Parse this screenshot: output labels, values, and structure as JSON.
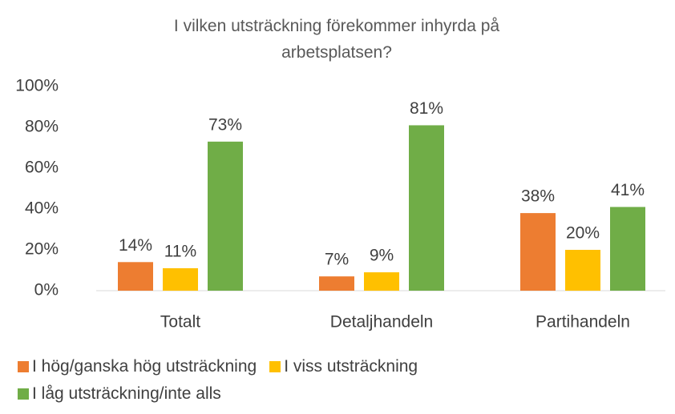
{
  "chart_data": {
    "type": "bar",
    "title": "I vilken utsträckning förekommer inhyrda på arbetsplatsen?",
    "categories": [
      "Totalt",
      "Detaljhandeln",
      "Partihandeln"
    ],
    "series": [
      {
        "name": "I hög/ganska hög utsträckning",
        "color": "#ED7D31",
        "values": [
          14,
          7,
          38
        ],
        "value_labels": [
          "14%",
          "7%",
          "38%"
        ]
      },
      {
        "name": "I viss utsträckning",
        "color": "#FFC000",
        "values": [
          11,
          9,
          20
        ],
        "value_labels": [
          "11%",
          "9%",
          "20%"
        ]
      },
      {
        "name": "I låg utsträckning/inte alls",
        "color": "#70AD47",
        "values": [
          73,
          81,
          41
        ],
        "value_labels": [
          "73%",
          "81%",
          "41%"
        ]
      }
    ],
    "ylim": [
      0,
      100
    ],
    "yticks": [
      {
        "value": 0,
        "label": "0%"
      },
      {
        "value": 20,
        "label": "20%"
      },
      {
        "value": 40,
        "label": "40%"
      },
      {
        "value": 60,
        "label": "60%"
      },
      {
        "value": 80,
        "label": "80%"
      },
      {
        "value": 100,
        "label": "100%"
      }
    ],
    "grid": false,
    "legend": "bottom"
  }
}
